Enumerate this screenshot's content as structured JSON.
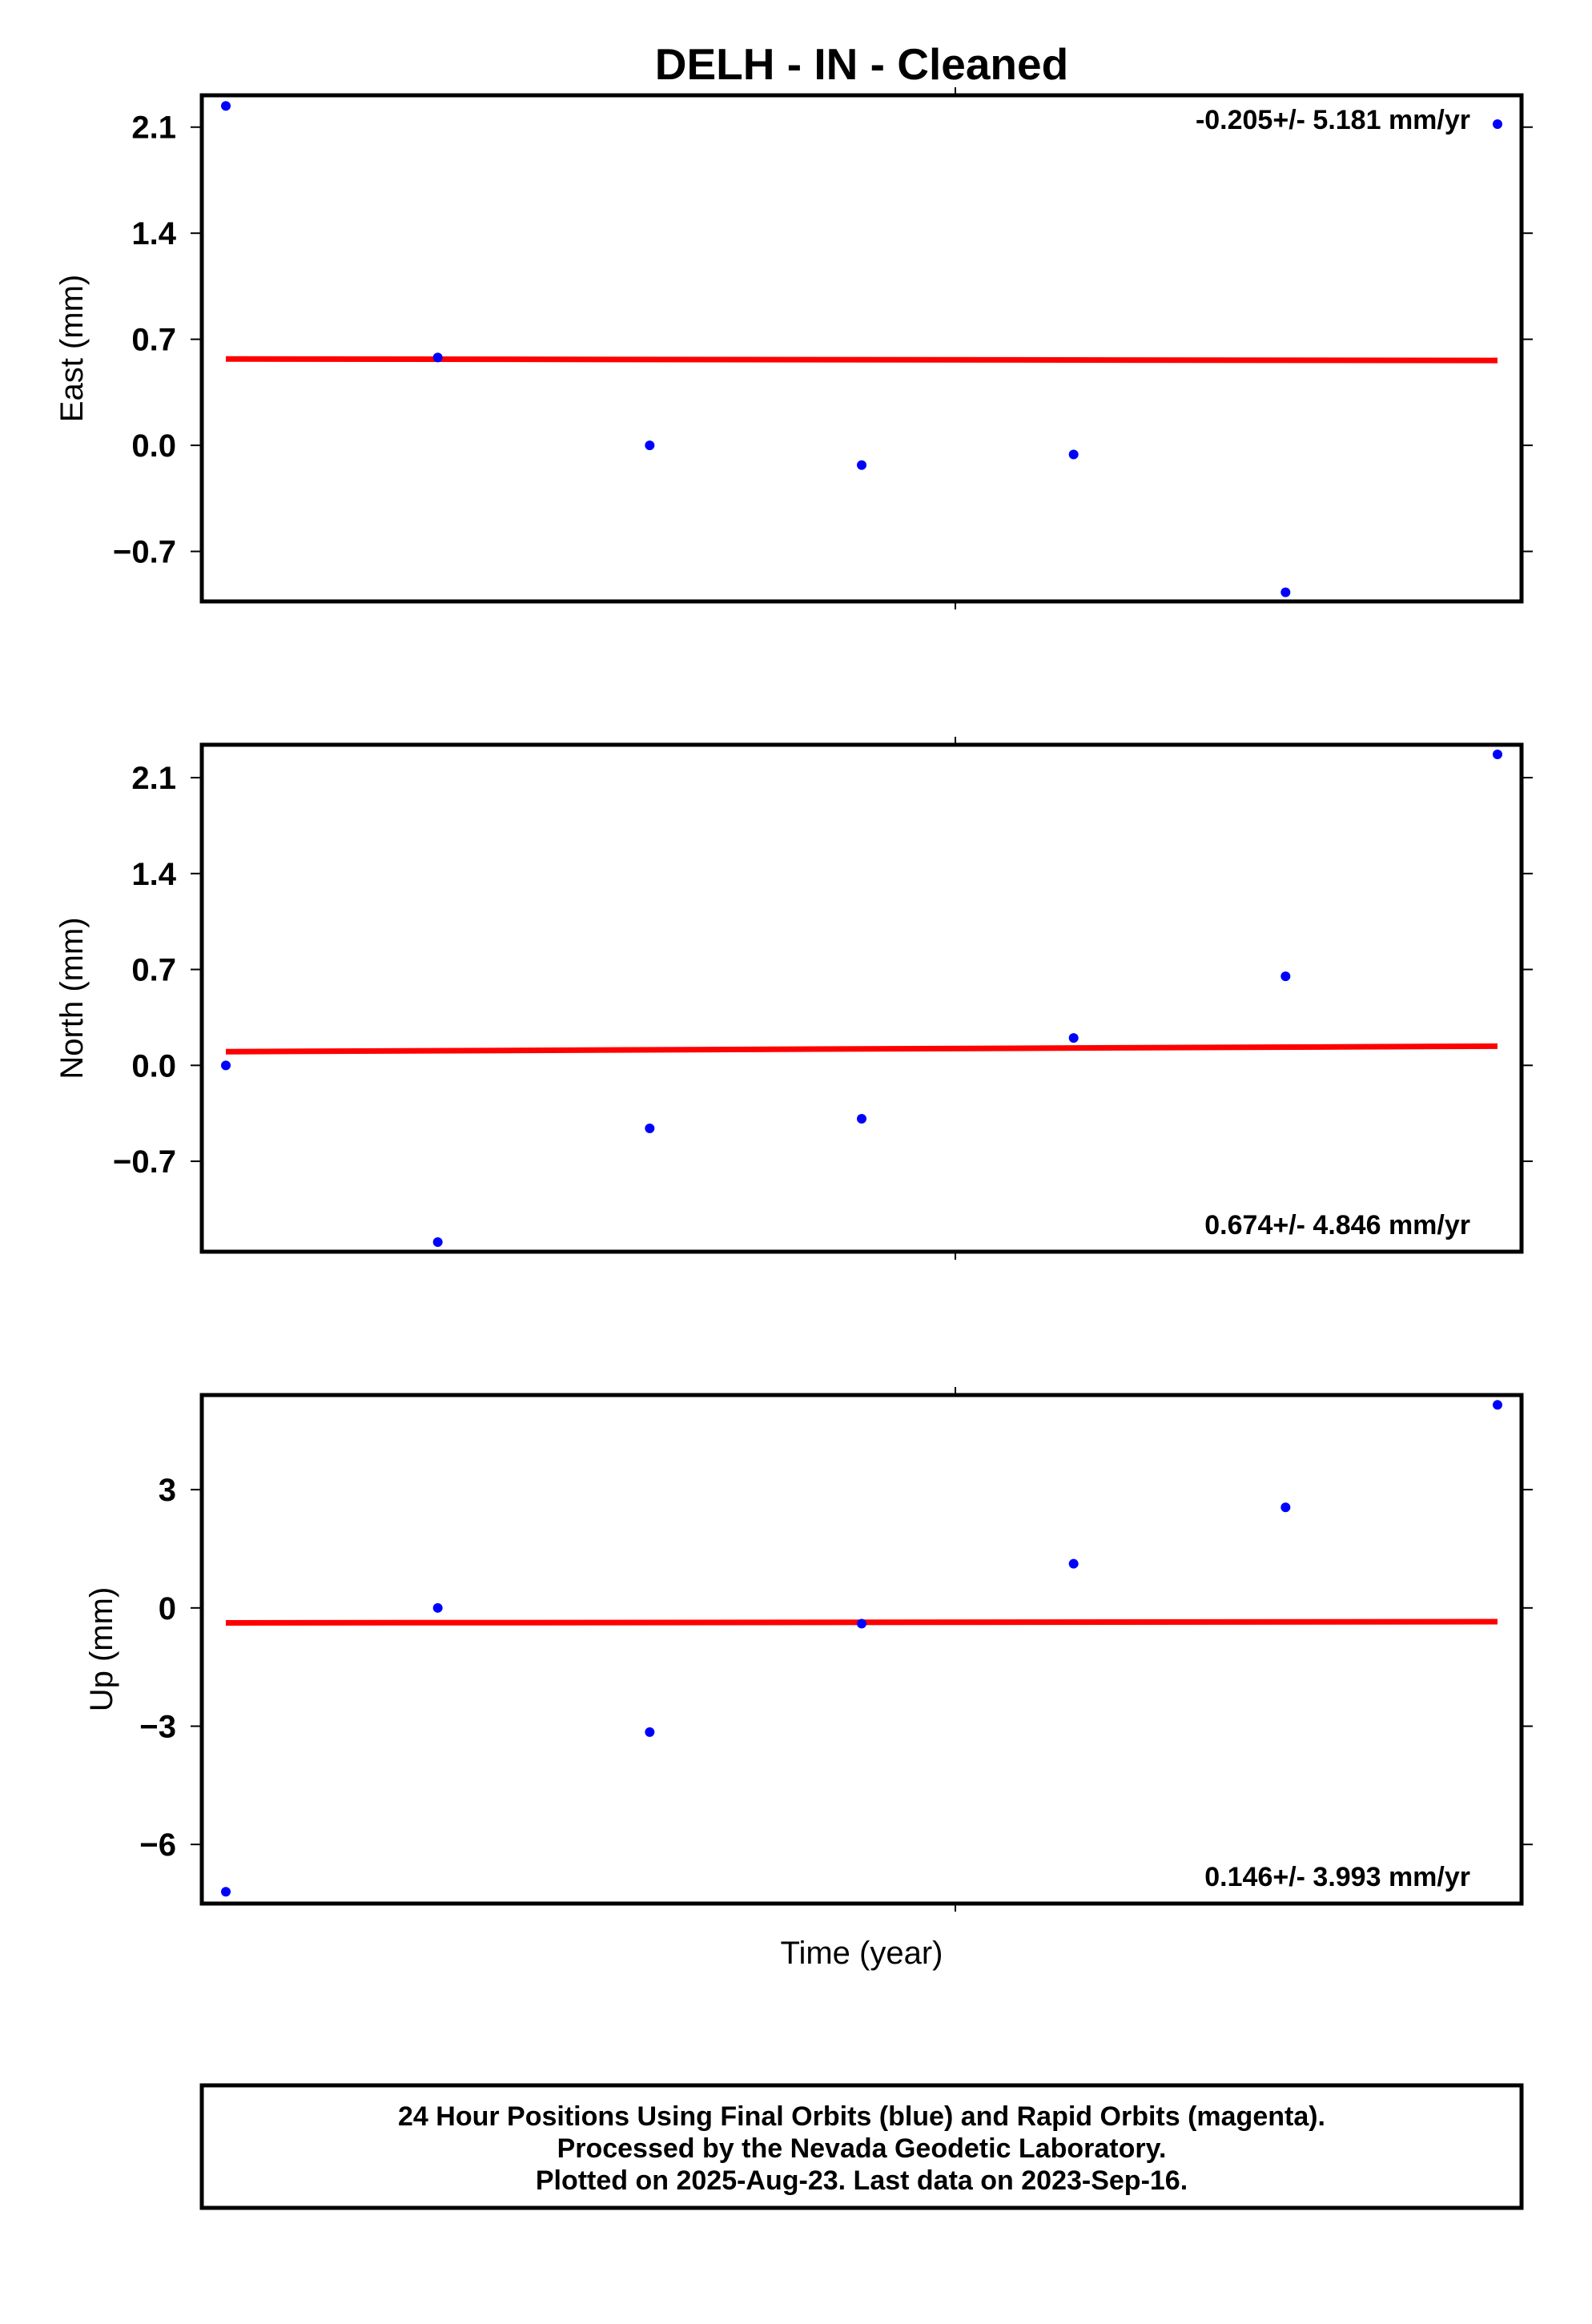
{
  "title": "DELH  - IN - Cleaned",
  "xlabel": "Time (year)",
  "footer": {
    "line1": "24 Hour Positions Using Final Orbits (blue) and Rapid Orbits (magenta).",
    "line2": "Processed by the Nevada Geodetic Laboratory.",
    "line3": "Plotted on 2025-Aug-23. Last data on 2023-Sep-16."
  },
  "colors": {
    "points": "#0000ff",
    "fit": "#ff0000",
    "frame": "#000000"
  },
  "chart_data": [
    {
      "type": "scatter",
      "ylabel": "East (mm)",
      "rate_label": "-0.205+/- 5.181 mm/yr",
      "rate_position": "top-right",
      "ylim": [
        -1.03,
        2.31
      ],
      "yticks": [
        -0.7,
        0.0,
        0.7,
        1.4,
        2.1
      ],
      "ytick_labels": [
        "−0.7",
        "0.0",
        "0.7",
        "1.4",
        "2.1"
      ],
      "x": [
        0,
        1,
        2,
        3,
        4,
        5,
        6
      ],
      "y": [
        2.24,
        0.58,
        0.0,
        -0.13,
        -0.06,
        -0.97,
        2.12
      ],
      "fit": {
        "x": [
          0,
          6
        ],
        "y": [
          0.57,
          0.56
        ]
      }
    },
    {
      "type": "scatter",
      "ylabel": "North (mm)",
      "rate_label": "0.674+/- 4.846 mm/yr",
      "rate_position": "bottom-right",
      "ylim": [
        -1.36,
        2.34
      ],
      "yticks": [
        -0.7,
        0.0,
        0.7,
        1.4,
        2.1
      ],
      "ytick_labels": [
        "−0.7",
        "0.0",
        "0.7",
        "1.4",
        "2.1"
      ],
      "x": [
        0,
        1,
        2,
        3,
        4,
        5,
        6
      ],
      "y": [
        0.0,
        -1.29,
        -0.46,
        -0.39,
        0.2,
        0.65,
        2.27
      ],
      "fit": {
        "x": [
          0,
          6
        ],
        "y": [
          0.1,
          0.14
        ]
      }
    },
    {
      "type": "scatter",
      "ylabel": "Up (mm)",
      "rate_label": "0.146+/- 3.993 mm/yr",
      "rate_position": "bottom-right",
      "ylim": [
        -7.5,
        5.4
      ],
      "yticks": [
        -6,
        -3,
        0,
        3
      ],
      "ytick_labels": [
        "−6",
        "−3",
        "0",
        "3"
      ],
      "x": [
        0,
        1,
        2,
        3,
        4,
        5,
        6
      ],
      "y": [
        -7.2,
        0.0,
        -3.15,
        -0.4,
        1.12,
        2.55,
        5.15
      ],
      "fit": {
        "x": [
          0,
          6
        ],
        "y": [
          -0.38,
          -0.35
        ]
      }
    }
  ]
}
